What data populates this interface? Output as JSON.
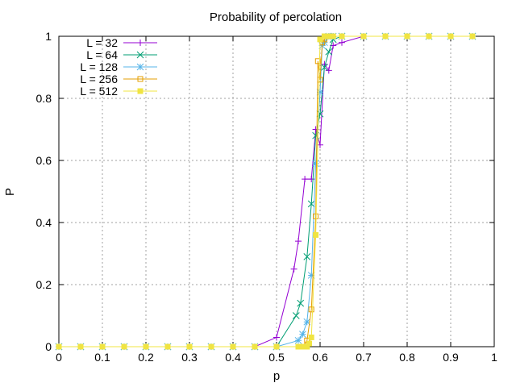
{
  "chart_data": {
    "type": "line",
    "title": "Probability of percolation",
    "xlabel": "p",
    "ylabel": "P",
    "xlim": [
      0,
      1
    ],
    "ylim": [
      0,
      1
    ],
    "grid": true,
    "legend_position": "top-left",
    "xticks": [
      "0",
      "0.1",
      "0.2",
      "0.3",
      "0.4",
      "0.5",
      "0.6",
      "0.7",
      "0.8",
      "0.9",
      "1"
    ],
    "yticks": [
      "0",
      "0.2",
      "0.4",
      "0.6",
      "0.8",
      "1"
    ],
    "series": [
      {
        "name": "L = 32",
        "color": "#9400d3",
        "marker": "plus",
        "x": [
          0,
          0.05,
          0.1,
          0.15,
          0.2,
          0.25,
          0.3,
          0.35,
          0.4,
          0.45,
          0.5,
          0.54,
          0.55,
          0.565,
          0.58,
          0.59,
          0.6,
          0.61,
          0.62,
          0.63,
          0.65,
          0.7,
          0.75,
          0.8,
          0.85,
          0.9,
          0.95
        ],
        "y": [
          0,
          0,
          0,
          0,
          0,
          0,
          0,
          0,
          0,
          0,
          0.03,
          0.25,
          0.34,
          0.54,
          0.54,
          0.7,
          0.65,
          0.91,
          0.89,
          0.97,
          0.98,
          1,
          1,
          1,
          1,
          1,
          1
        ]
      },
      {
        "name": "L = 64",
        "color": "#009e73",
        "marker": "cross",
        "x": [
          0,
          0.05,
          0.1,
          0.15,
          0.2,
          0.25,
          0.3,
          0.35,
          0.4,
          0.45,
          0.5,
          0.545,
          0.555,
          0.57,
          0.58,
          0.59,
          0.6,
          0.61,
          0.62,
          0.63,
          0.65,
          0.7,
          0.75,
          0.8,
          0.85,
          0.9,
          0.95
        ],
        "y": [
          0,
          0,
          0,
          0,
          0,
          0,
          0,
          0,
          0,
          0,
          0,
          0.1,
          0.14,
          0.29,
          0.46,
          0.68,
          0.75,
          0.9,
          0.95,
          0.99,
          1,
          1,
          1,
          1,
          1,
          1,
          1
        ]
      },
      {
        "name": "L = 128",
        "color": "#56b4e9",
        "marker": "star",
        "x": [
          0,
          0.05,
          0.1,
          0.15,
          0.2,
          0.25,
          0.3,
          0.35,
          0.4,
          0.45,
          0.5,
          0.55,
          0.56,
          0.57,
          0.58,
          0.59,
          0.6,
          0.605,
          0.61,
          0.62,
          0.63,
          0.65,
          0.7,
          0.75,
          0.8,
          0.85,
          0.9,
          0.95
        ],
        "y": [
          0,
          0,
          0,
          0,
          0,
          0,
          0,
          0,
          0,
          0,
          0,
          0.02,
          0.04,
          0.08,
          0.23,
          0.59,
          0.82,
          0.97,
          0.98,
          1,
          1,
          1,
          1,
          1,
          1,
          1,
          1,
          1
        ]
      },
      {
        "name": "L = 256",
        "color": "#e69f00",
        "marker": "square",
        "x": [
          0,
          0.05,
          0.1,
          0.15,
          0.2,
          0.25,
          0.3,
          0.35,
          0.4,
          0.45,
          0.5,
          0.56,
          0.57,
          0.58,
          0.59,
          0.595,
          0.6,
          0.605,
          0.61,
          0.62,
          0.65,
          0.7,
          0.75,
          0.8,
          0.85,
          0.9,
          0.95
        ],
        "y": [
          0,
          0,
          0,
          0,
          0,
          0,
          0,
          0,
          0,
          0,
          0,
          0,
          0.02,
          0.12,
          0.42,
          0.92,
          0.86,
          0.98,
          0.99,
          1,
          1,
          1,
          1,
          1,
          1,
          1,
          1
        ]
      },
      {
        "name": "L = 512",
        "color": "#f0e442",
        "marker": "filled-square",
        "x": [
          0,
          0.05,
          0.1,
          0.15,
          0.2,
          0.25,
          0.3,
          0.35,
          0.4,
          0.45,
          0.5,
          0.55,
          0.56,
          0.57,
          0.575,
          0.58,
          0.59,
          0.6,
          0.61,
          0.62,
          0.63,
          0.65,
          0.7,
          0.75,
          0.8,
          0.85,
          0.9,
          0.95
        ],
        "y": [
          0,
          0,
          0,
          0,
          0,
          0,
          0,
          0,
          0,
          0,
          0,
          0,
          0,
          0,
          0.01,
          0.03,
          0.36,
          0.99,
          1,
          1,
          1,
          1,
          1,
          1,
          1,
          1,
          1,
          1
        ]
      }
    ]
  }
}
